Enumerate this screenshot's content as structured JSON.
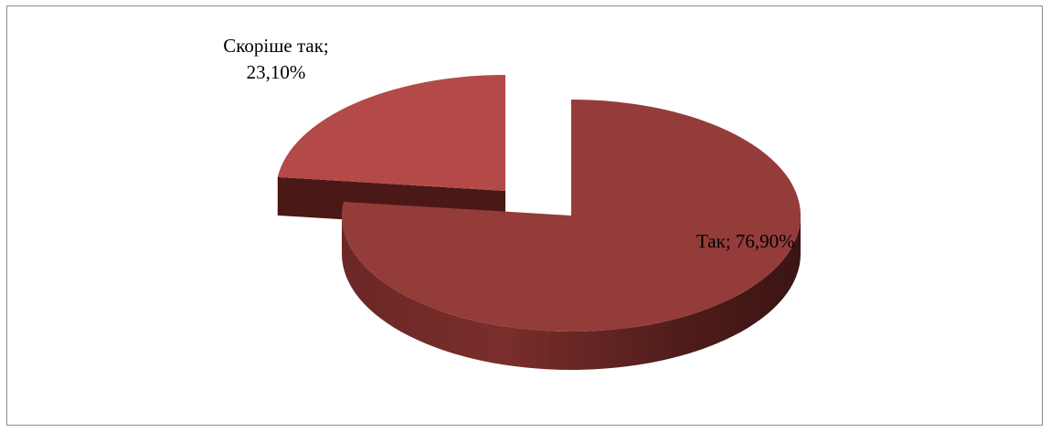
{
  "chart_data": {
    "type": "pie",
    "style": "3d-exploded",
    "slices": [
      {
        "label": "Так",
        "value": 76.9,
        "value_label": "76,90%",
        "color": "#943c3a"
      },
      {
        "label": "Скоріше так",
        "value": 23.1,
        "value_label": "23,10%",
        "color": "#b34a47"
      }
    ],
    "legend": "none",
    "background": "#ffffff"
  }
}
